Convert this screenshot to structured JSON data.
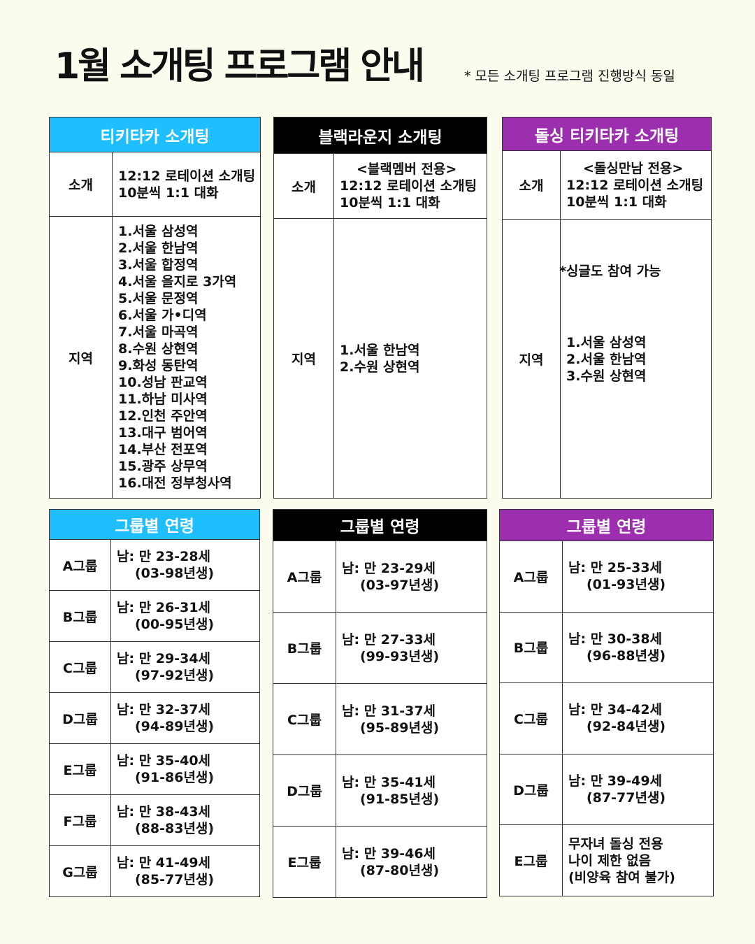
{
  "title": "1월 소개팅 프로그램 안내",
  "note": "* 모든 소개팅 프로그램 진행방식 동일",
  "colors": {
    "background": "#fcfcee",
    "tikitaka": "#1fbfff",
    "black_lounge": "#000000",
    "dolsing": "#9b2fae"
  },
  "programs": [
    {
      "name": "티키타카 소개팅",
      "intro_label": "소개",
      "intro": [
        "12:12 로테이션 소개팅",
        "10분씩 1:1 대화"
      ],
      "region_label": "지역",
      "region_note": "",
      "regions": [
        "1.서울 삼성역",
        "2.서울 한남역",
        "3.서울 합정역",
        "4.서울 을지로 3가역",
        "5.서울 문정역",
        "6.서울 가•디역",
        "7.서울 마곡역",
        "8.수원 상현역",
        "9.화성 동탄역",
        "10.성남 판교역",
        "11.하남 미사역",
        "12.인천 주안역",
        "13.대구 범어역",
        "14.부산 전포역",
        "15.광주 상무역",
        "16.대전 정부청사역"
      ]
    },
    {
      "name": "블랙라운지 소개팅",
      "intro_label": "소개",
      "intro": [
        "<블랙멤버 전용>",
        "12:12 로테이션 소개팅",
        "10분씩 1:1 대화"
      ],
      "region_label": "지역",
      "region_note": "",
      "regions": [
        "1.서울 한남역",
        "2.수원 상현역"
      ]
    },
    {
      "name": "돌싱 티키타카 소개팅",
      "intro_label": "소개",
      "intro": [
        "<돌싱만남 전용>",
        "12:12 로테이션 소개팅",
        "10분씩 1:1 대화"
      ],
      "region_label": "지역",
      "region_note": "*싱글도 참여 가능",
      "regions": [
        "1.서울 삼성역",
        "2.서울 한남역",
        "3.수원 상현역"
      ]
    }
  ],
  "age_tables": [
    {
      "header": "그룹별 연령",
      "groups": [
        {
          "group": "A그룹",
          "lines": [
            "남: 만 23-28세",
            "(03-98년생)"
          ]
        },
        {
          "group": "B그룹",
          "lines": [
            "남: 만 26-31세",
            "(00-95년생)"
          ]
        },
        {
          "group": "C그룹",
          "lines": [
            "남: 만 29-34세",
            "(97-92년생)"
          ]
        },
        {
          "group": "D그룹",
          "lines": [
            "남: 만 32-37세",
            "(94-89년생)"
          ]
        },
        {
          "group": "E그룹",
          "lines": [
            "남: 만 35-40세",
            "(91-86년생)"
          ]
        },
        {
          "group": "F그룹",
          "lines": [
            "남: 만 38-43세",
            "(88-83년생)"
          ]
        },
        {
          "group": "G그룹",
          "lines": [
            "남: 만 41-49세",
            "(85-77년생)"
          ]
        }
      ]
    },
    {
      "header": "그룹별 연령",
      "groups": [
        {
          "group": "A그룹",
          "lines": [
            "남: 만 23-29세",
            "(03-97년생)"
          ]
        },
        {
          "group": "B그룹",
          "lines": [
            "남: 만 27-33세",
            "(99-93년생)"
          ]
        },
        {
          "group": "C그룹",
          "lines": [
            "남: 만 31-37세",
            "(95-89년생)"
          ]
        },
        {
          "group": "D그룹",
          "lines": [
            "남: 만 35-41세",
            "(91-85년생)"
          ]
        },
        {
          "group": "E그룹",
          "lines": [
            "남: 만 39-46세",
            "(87-80년생)"
          ]
        }
      ]
    },
    {
      "header": "그룹별 연령",
      "groups": [
        {
          "group": "A그룹",
          "lines": [
            "남: 만 25-33세",
            "(01-93년생)"
          ]
        },
        {
          "group": "B그룹",
          "lines": [
            "남: 만 30-38세",
            "(96-88년생)"
          ]
        },
        {
          "group": "C그룹",
          "lines": [
            "남: 만 34-42세",
            "(92-84년생)"
          ]
        },
        {
          "group": "D그룹",
          "lines": [
            "남: 만 39-49세",
            "(87-77년생)"
          ]
        },
        {
          "group": "E그룹",
          "lines": [
            "무자녀 돌싱 전용",
            "나이 제한 없음",
            "(비양육 참여 불가)"
          ],
          "plain": true
        }
      ]
    }
  ]
}
